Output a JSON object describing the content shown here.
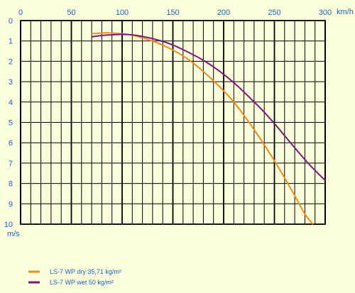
{
  "chart_data": {
    "type": "line",
    "x_unit": "km/h",
    "y_unit": "m/s",
    "xlim": [
      0,
      300
    ],
    "ylim": [
      0,
      10
    ],
    "y_inverted": true,
    "x_ticks": [
      "0",
      "50",
      "100",
      "150",
      "200",
      "250",
      "300"
    ],
    "y_ticks": [
      "0",
      "1",
      "2",
      "3",
      "4",
      "5",
      "6",
      "7",
      "8",
      "9",
      "10"
    ],
    "grid": true,
    "legend_position": "bottom-left",
    "series": [
      {
        "name": "LS-7 WP dry  35,71 kg/m²",
        "color": "#f08c1e",
        "x": [
          70,
          85,
          100,
          110,
          120,
          135,
          150,
          165,
          180,
          195,
          210,
          225,
          240,
          255,
          270,
          280,
          288
        ],
        "y": [
          0.65,
          0.6,
          0.65,
          0.72,
          0.85,
          1.1,
          1.45,
          1.9,
          2.5,
          3.2,
          4.0,
          5.0,
          6.1,
          7.3,
          8.6,
          9.5,
          10.0
        ]
      },
      {
        "name": "LS-7 WP wet  50 kg/m²",
        "color": "#7a1a7a",
        "x": [
          70,
          80,
          90,
          100,
          110,
          120,
          135,
          150,
          165,
          180,
          195,
          210,
          225,
          240,
          255,
          270,
          285,
          300
        ],
        "y": [
          0.8,
          0.73,
          0.7,
          0.68,
          0.7,
          0.78,
          0.95,
          1.2,
          1.55,
          1.95,
          2.45,
          3.05,
          3.75,
          4.5,
          5.35,
          6.25,
          7.1,
          7.85
        ]
      }
    ]
  }
}
